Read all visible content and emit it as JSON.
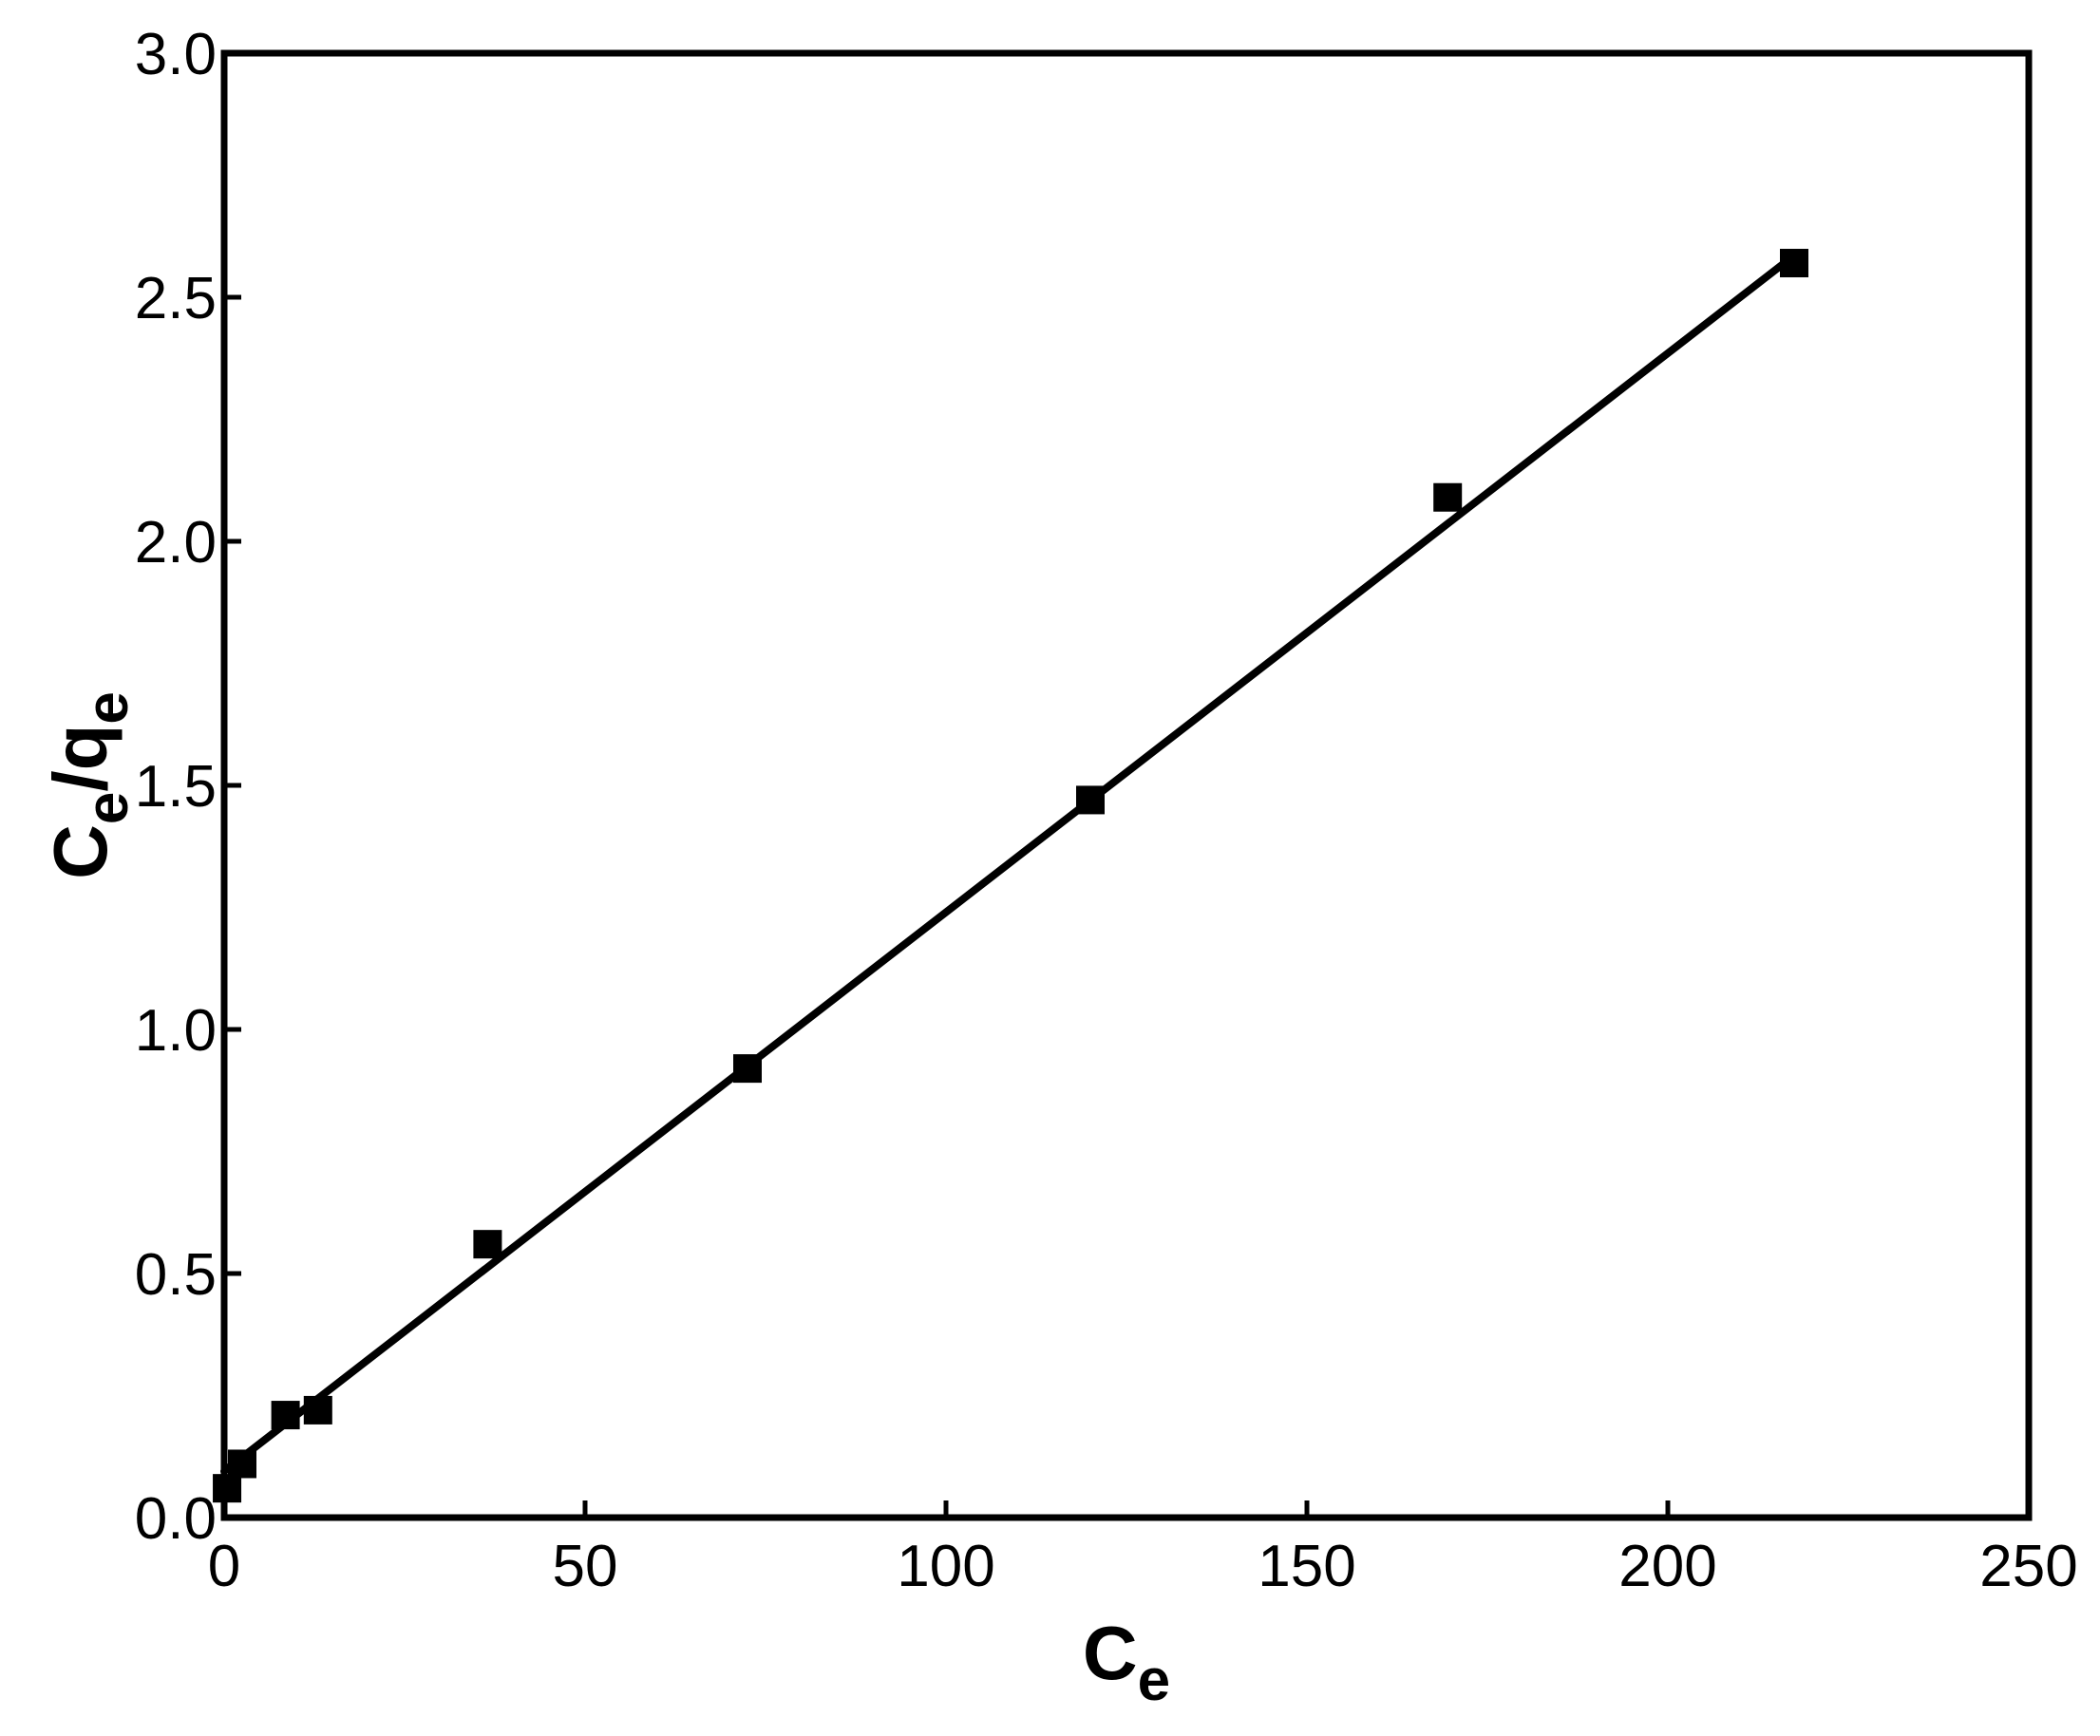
{
  "chart_data": {
    "type": "scatter",
    "title": "",
    "xlabel": {
      "main": "C",
      "sub": "e"
    },
    "ylabel": {
      "main1": "C",
      "sub1": "e",
      "sep": "/q",
      "sub2": "e"
    },
    "xlim": [
      0,
      250
    ],
    "ylim": [
      0,
      3.0
    ],
    "x_ticks": [
      "0",
      "50",
      "100",
      "150",
      "200",
      "250"
    ],
    "y_ticks": [
      "0.0",
      "0.5",
      "1.0",
      "1.5",
      "2.0",
      "2.5",
      "3.0"
    ],
    "grid": false,
    "legend": "none",
    "series": [
      {
        "marker": "square",
        "color": "#000000",
        "x": [
          0.4,
          2.5,
          8.5,
          13.0,
          36.5,
          72.5,
          120.0,
          169.5,
          217.5
        ],
        "y": [
          0.06,
          0.11,
          0.21,
          0.22,
          0.56,
          0.92,
          1.47,
          2.09,
          2.57
        ]
      }
    ],
    "fit_line": {
      "color": "#000000",
      "x": [
        0.0,
        217.0
      ],
      "y": [
        0.095,
        2.58
      ]
    }
  }
}
